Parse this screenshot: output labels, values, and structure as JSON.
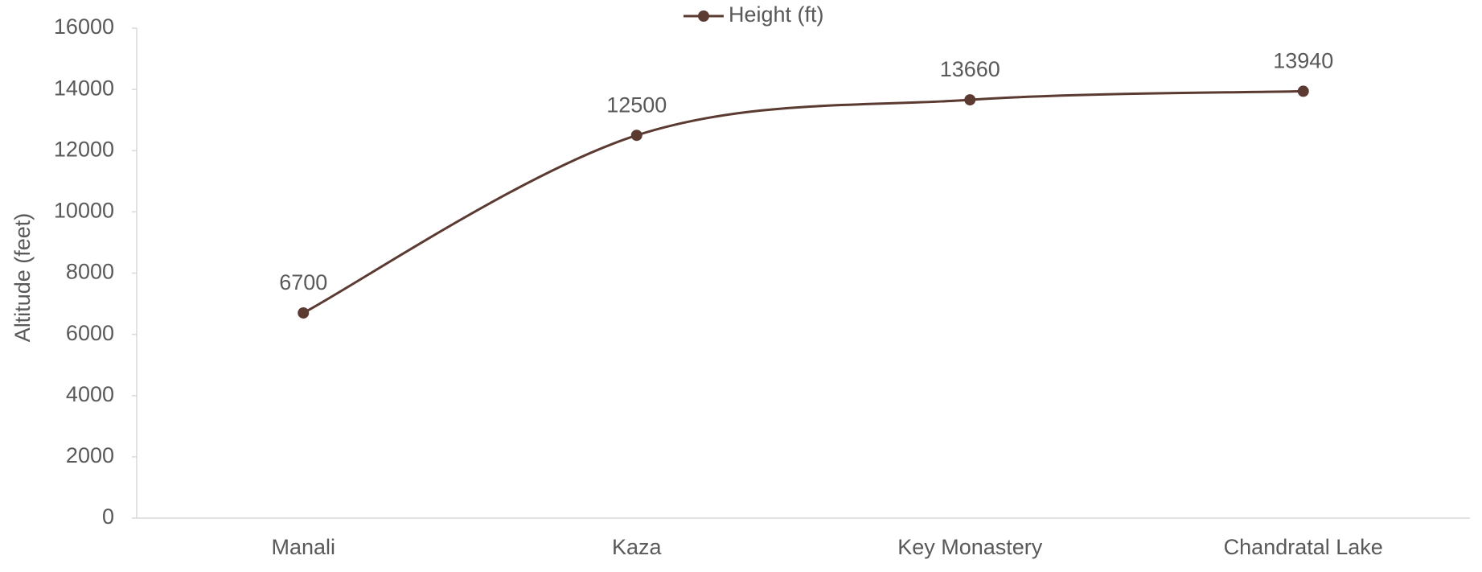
{
  "chart_data": {
    "type": "line",
    "y_label": "Altitude (feet)",
    "categories": [
      "Manali",
      "Kaza",
      "Key Monastery",
      "Chandratal Lake"
    ],
    "series": [
      {
        "name": "Height (ft)",
        "color": "#5b3a32",
        "values": [
          6700,
          12500,
          13660,
          13940
        ]
      }
    ],
    "ylim": [
      0,
      16000
    ],
    "yticks": [
      0,
      2000,
      4000,
      6000,
      8000,
      10000,
      12000,
      14000,
      16000
    ],
    "grid": false,
    "legend": "top",
    "smooth": true,
    "data_labels": true
  }
}
